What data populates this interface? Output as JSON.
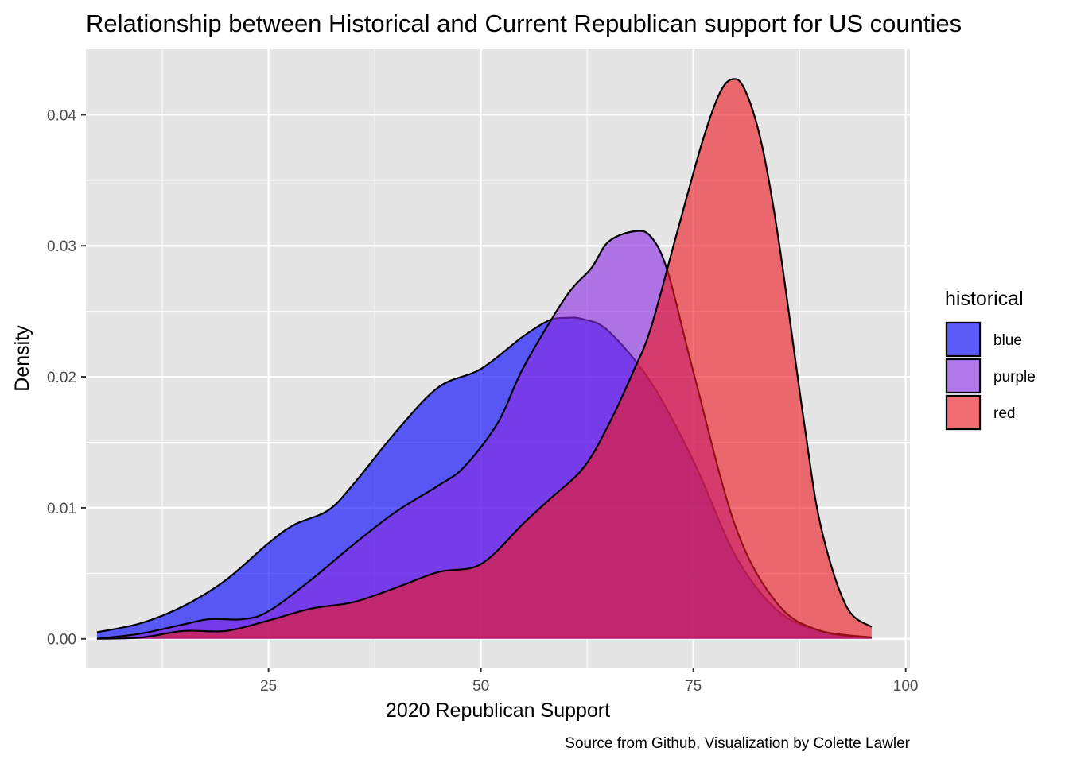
{
  "chart_data": {
    "type": "area",
    "title": "Relationship between Historical and Current Republican support for US counties",
    "xlabel": "2020 Republican Support",
    "ylabel": "Density",
    "caption": "Source from Github, Visualization by Colette Lawler",
    "xlim": [
      3.5,
      100.5
    ],
    "ylim": [
      -0.0022,
      0.045
    ],
    "x_ticks": [
      25,
      50,
      75,
      100
    ],
    "x_tick_labels": [
      "25",
      "50",
      "75",
      "100"
    ],
    "y_ticks": [
      0.0,
      0.01,
      0.02,
      0.03,
      0.04
    ],
    "y_tick_labels": [
      "0.00",
      "0.01",
      "0.02",
      "0.03",
      "0.04"
    ],
    "grid": true,
    "legend": {
      "title": "historical",
      "position": "right",
      "entries": [
        "blue",
        "purple",
        "red"
      ]
    },
    "series": [
      {
        "name": "blue",
        "color": "#0000ff",
        "opacity": 0.62,
        "x": [
          4.8,
          10,
          15,
          20,
          25,
          28,
          32,
          35,
          40,
          45,
          50,
          55,
          58,
          60,
          62,
          65,
          70,
          75,
          80,
          85,
          90,
          96
        ],
        "y": [
          0.0005,
          0.0012,
          0.0025,
          0.0045,
          0.0073,
          0.0087,
          0.0098,
          0.0118,
          0.0158,
          0.0192,
          0.0206,
          0.0231,
          0.0243,
          0.0245,
          0.0244,
          0.0235,
          0.0196,
          0.0136,
          0.0063,
          0.0021,
          0.0006,
          0.0001
        ]
      },
      {
        "name": "purple",
        "color": "#8a2be2",
        "opacity": 0.62,
        "x": [
          4.8,
          10,
          15,
          18,
          22,
          25,
          30,
          35,
          40,
          45,
          48,
          52,
          55,
          60,
          63,
          65,
          68,
          70,
          72,
          75,
          80,
          85,
          90,
          96
        ],
        "y": [
          0.0,
          0.0004,
          0.0011,
          0.0015,
          0.0015,
          0.0021,
          0.0045,
          0.0072,
          0.0097,
          0.0117,
          0.0131,
          0.0165,
          0.0207,
          0.0261,
          0.0283,
          0.0303,
          0.0311,
          0.0307,
          0.028,
          0.0204,
          0.0085,
          0.0026,
          0.0006,
          0.0001
        ]
      },
      {
        "name": "red",
        "color": "#ee1c24",
        "opacity": 0.62,
        "x": [
          4.8,
          10,
          15,
          20,
          25,
          30,
          35,
          40,
          45,
          50,
          55,
          58,
          62,
          65,
          68,
          70,
          73,
          76,
          78,
          79.5,
          81,
          83,
          85,
          88,
          90,
          93,
          96
        ],
        "y": [
          0.0,
          0.0001,
          0.0006,
          0.0006,
          0.0014,
          0.0023,
          0.0028,
          0.0039,
          0.0051,
          0.0057,
          0.0088,
          0.0106,
          0.013,
          0.0163,
          0.0205,
          0.0237,
          0.0308,
          0.0378,
          0.0415,
          0.0427,
          0.042,
          0.0379,
          0.0306,
          0.0167,
          0.0086,
          0.0025,
          0.0009
        ]
      }
    ]
  }
}
